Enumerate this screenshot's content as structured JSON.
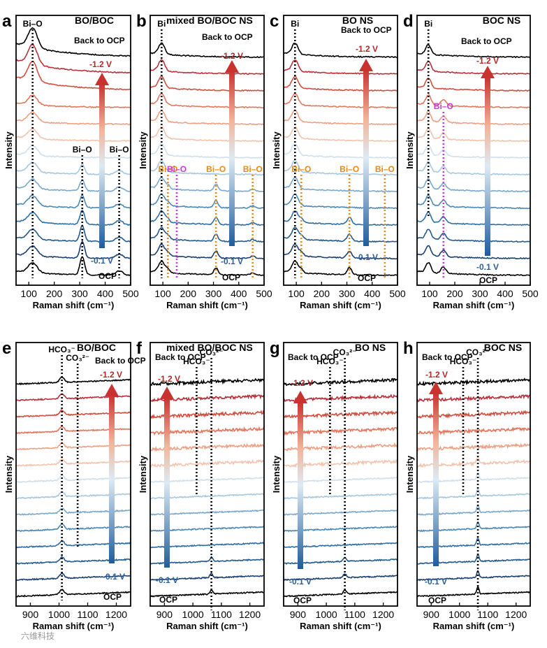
{
  "figure": {
    "watermark": "六维科技",
    "chart_data": [
      {
        "id": "a",
        "type": "line",
        "title": "BO/BOC",
        "xlabel": "Raman shift (cm⁻¹)",
        "ylabel": "Intensity",
        "xlim": [
          50,
          500
        ],
        "xticks": [
          100,
          200,
          300,
          400,
          500
        ],
        "series_order": [
          "OCP",
          "-0.1 V",
          "...",
          "-1.2 V",
          "Back to OCP"
        ],
        "peaks": [
          {
            "label": "Bi–O",
            "x": 115,
            "color": "black"
          },
          {
            "label": "Bi–O",
            "x": 310,
            "color": "black"
          },
          {
            "label": "Bi–O",
            "x": 455,
            "color": "black"
          }
        ],
        "annotations": {
          "top": "Back to OCP",
          "high": "-1.2 V",
          "low": "-0.1 V",
          "bottom": "OCP"
        }
      },
      {
        "id": "b",
        "type": "line",
        "title": "mixed BO/BOC NS",
        "xlabel": "Raman shift (cm⁻¹)",
        "ylabel": "",
        "xlim": [
          50,
          500
        ],
        "xticks": [
          100,
          200,
          300,
          400,
          500
        ],
        "peaks": [
          {
            "label": "Bi",
            "x": 95,
            "color": "black"
          },
          {
            "label": "Bi–O",
            "x": 120,
            "color": "orange"
          },
          {
            "label": "Bi–O",
            "x": 155,
            "color": "purple"
          },
          {
            "label": "Bi–O",
            "x": 310,
            "color": "orange"
          },
          {
            "label": "Bi–O",
            "x": 455,
            "color": "orange"
          }
        ],
        "annotations": {
          "top": "Back to OCP",
          "high": "-1.2 V",
          "low": "-0.1 V",
          "bottom": "OCP"
        }
      },
      {
        "id": "c",
        "type": "line",
        "title": "BO NS",
        "xlabel": "Raman shift (cm⁻¹)",
        "ylabel": "",
        "xlim": [
          50,
          500
        ],
        "xticks": [
          100,
          200,
          300,
          400,
          500
        ],
        "peaks": [
          {
            "label": "Bi",
            "x": 95,
            "color": "black"
          },
          {
            "label": "Bi–O",
            "x": 120,
            "color": "orange"
          },
          {
            "label": "Bi–O",
            "x": 310,
            "color": "orange"
          },
          {
            "label": "Bi–O",
            "x": 450,
            "color": "orange"
          }
        ],
        "annotations": {
          "top": "Back to OCP",
          "high": "-1.2 V",
          "low": "-0.1 V",
          "bottom": "OCP"
        }
      },
      {
        "id": "d",
        "type": "line",
        "title": "BOC NS",
        "xlabel": "Raman shift (cm⁻¹)",
        "ylabel": "",
        "xlim": [
          50,
          500
        ],
        "xticks": [
          100,
          200,
          300,
          400,
          500
        ],
        "peaks": [
          {
            "label": "Bi",
            "x": 95,
            "color": "black"
          },
          {
            "label": "Bi–O",
            "x": 155,
            "color": "purple"
          }
        ],
        "annotations": {
          "top": "Back to OCP",
          "high": "-1.2 V",
          "low": "-0.1 V",
          "bottom": "OCP"
        }
      },
      {
        "id": "e",
        "type": "line",
        "title": "BO/BOC",
        "xlabel": "Raman shift (cm⁻¹)",
        "ylabel": "Intensity",
        "xlim": [
          850,
          1250
        ],
        "xticks": [
          900,
          1000,
          1100,
          1200
        ],
        "peaks": [
          {
            "label": "HCO₃⁻",
            "x": 1010,
            "color": "black"
          },
          {
            "label": "CO₃²⁻",
            "x": 1065,
            "color": "black"
          }
        ],
        "annotations": {
          "top": "Back to OCP",
          "high": "-1.2 V",
          "low": "-0.1 V",
          "bottom": "OCP"
        }
      },
      {
        "id": "f",
        "type": "line",
        "title": "mixed BO/BOC NS",
        "xlabel": "Raman shift (cm⁻¹)",
        "ylabel": "",
        "xlim": [
          850,
          1250
        ],
        "xticks": [
          900,
          1000,
          1100,
          1200
        ],
        "peaks": [
          {
            "label": "HCO₃⁻",
            "x": 1013,
            "color": "black"
          },
          {
            "label": "CO₃²⁻",
            "x": 1065,
            "color": "black"
          }
        ],
        "annotations": {
          "top": "Back to OCP",
          "high": "-1.2 V",
          "low": "-0.1 V",
          "bottom": "OCP"
        }
      },
      {
        "id": "g",
        "type": "line",
        "title": "BO NS",
        "xlabel": "Raman shift (cm⁻¹)",
        "ylabel": "",
        "xlim": [
          850,
          1250
        ],
        "xticks": [
          900,
          1000,
          1100,
          1200
        ],
        "peaks": [
          {
            "label": "HCO₃⁻",
            "x": 1013,
            "color": "black"
          },
          {
            "label": "CO₃²⁻",
            "x": 1065,
            "color": "black"
          }
        ],
        "annotations": {
          "top": "Back to OCP",
          "high": "-1.2 V",
          "low": "-0.1 V",
          "bottom": "OCP"
        }
      },
      {
        "id": "h",
        "type": "line",
        "title": "BOC NS",
        "xlabel": "Raman shift (cm⁻¹)",
        "ylabel": "",
        "xlim": [
          850,
          1250
        ],
        "xticks": [
          900,
          1000,
          1100,
          1200
        ],
        "peaks": [
          {
            "label": "HCO₃⁻",
            "x": 1013,
            "color": "black"
          },
          {
            "label": "CO₃²⁻",
            "x": 1065,
            "color": "black"
          }
        ],
        "annotations": {
          "top": "Back to OCP",
          "high": "-1.2 V",
          "low": "-0.1 V",
          "bottom": "OCP"
        }
      }
    ],
    "potential_colors": [
      "#000000",
      "#1b3f70",
      "#225a8e",
      "#2e6ea4",
      "#4a88b8",
      "#7aa8cd",
      "#a7c7e0",
      "#cfdfec",
      "#f2c3ae",
      "#ef9f82",
      "#e2775e",
      "#cf4f3f",
      "#b8303a",
      "#8b1522",
      "#000000"
    ],
    "colors": {
      "peak_black": "#000000",
      "peak_orange": "#e58a16",
      "peak_purple": "#c838d8",
      "label_red": "#b02828",
      "label_blue": "#2c5f9a"
    }
  }
}
